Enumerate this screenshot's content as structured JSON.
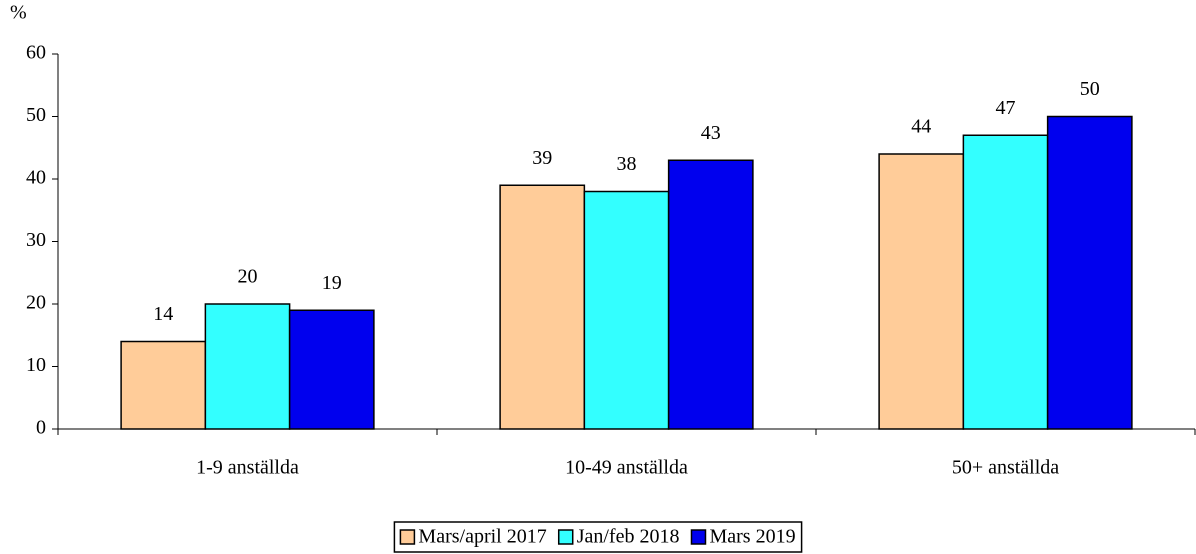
{
  "chart_data": {
    "type": "bar",
    "ylabel": "%",
    "categories": [
      "1-9 anställda",
      "10-49 anställda",
      "50+ anställda"
    ],
    "series": [
      {
        "name": "Mars/april 2017",
        "color": "#ffcc99",
        "values": [
          14,
          39,
          44
        ]
      },
      {
        "name": "Jan/feb 2018",
        "color": "#33ffff",
        "values": [
          20,
          38,
          47
        ]
      },
      {
        "name": "Mars 2019",
        "color": "#0000ee",
        "values": [
          19,
          43,
          50
        ]
      }
    ],
    "ylim": [
      0,
      60
    ],
    "yticks": [
      0,
      10,
      20,
      30,
      40,
      50,
      60
    ],
    "grid": false,
    "legend": "bottom"
  }
}
